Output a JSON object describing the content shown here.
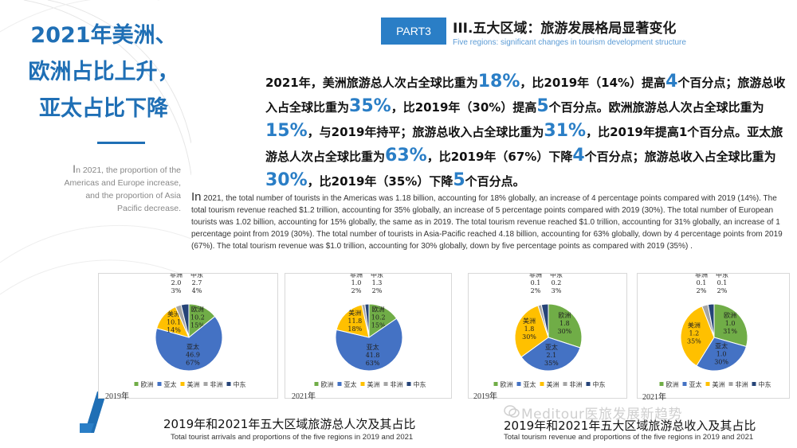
{
  "left": {
    "title_lines": [
      "2021年美洲、",
      "欧洲占比上升，",
      "亚太占比下降"
    ],
    "english_first": "I",
    "english_rest": "n 2021, the proportion of the Americas and Europe increase, and the proportion of Asia Pacific decrease."
  },
  "header": {
    "part_label": "PART3",
    "title_zh": "III.五大区域：旅游发展格局显著变化",
    "title_en": "Five regions: significant changes in tourism development structure"
  },
  "summary_zh": [
    {
      "t": "2021年，美洲旅游总人次占全球比重为"
    },
    {
      "h": "18%"
    },
    {
      "t": "，比2019年（14%）提高"
    },
    {
      "h": "4"
    },
    {
      "t": "个百分点；旅游总收入占全球比重为"
    },
    {
      "h": "35%"
    },
    {
      "t": "，比2019年（30%）提高"
    },
    {
      "h": "5"
    },
    {
      "t": "个百分点。欧洲旅游总人次占全球比重为"
    },
    {
      "h": "15%"
    },
    {
      "t": "，与2019年持平；旅游总收入占全球比重为"
    },
    {
      "h": "31%"
    },
    {
      "t": "，比2019年提高1个百分点。亚太旅游总人次占全球比重为"
    },
    {
      "h": "63%"
    },
    {
      "t": "，比2019年（67%）下降"
    },
    {
      "h": "4"
    },
    {
      "t": "个百分点；旅游总收入占全球比重为"
    },
    {
      "h": "30%"
    },
    {
      "t": "，比2019年（35%）下降"
    },
    {
      "h": "5"
    },
    {
      "t": "个百分点。"
    }
  ],
  "summary_en_first": "In",
  "summary_en_rest": " 2021, the total number of tourists in the Americas was 1.18 billion, accounting for 18% globally, an increase of 4 percentage points compared with 2019 (14%). The total tourism revenue reached $1.2 trillion, accounting for 35% globally, an increase of 5 percentage points compared with 2019 (30%). The total number of European tourists was 1.02 billion, accounting for 15% globally, the same as in 2019. The total tourism revenue reached $1.0 trillion, accounting for 31% globally, an increase of 1 percentage point from 2019 (30%). The total number of tourists in Asia-Pacific reached 4.18 billion, accounting for 63% globally, down by 4 percentage points from 2019 (67%). The total tourism revenue was $1.0 trillion, accounting for 30% globally,  down by five percentage points as compared with 2019 (35%) .",
  "legend_order": [
    "欧洲",
    "亚太",
    "美洲",
    "非洲",
    "中东"
  ],
  "colors": {
    "欧洲": "#70ad47",
    "亚太": "#4472c4",
    "美洲": "#ffc000",
    "非洲": "#a5a5a5",
    "中东": "#264478"
  },
  "chart_data": [
    {
      "type": "pie",
      "title": "2019年",
      "slices": [
        {
          "name": "欧洲",
          "value": 10.2,
          "label": "欧洲, 10.2, 15%"
        },
        {
          "name": "亚太",
          "value": 46.9,
          "label": "亚太, 46.9, 67%"
        },
        {
          "name": "美洲",
          "value": 10.1,
          "label": "美洲, 10.1, 14%"
        },
        {
          "name": "非洲",
          "value": 2.0,
          "label": "非洲, 2.0, 3%"
        },
        {
          "name": "中东",
          "value": 2.7,
          "label": "中东, 2.7, 4%"
        }
      ]
    },
    {
      "type": "pie",
      "title": "2021年",
      "slices": [
        {
          "name": "欧洲",
          "value": 10.2,
          "label": "欧洲, 10.2, 15%"
        },
        {
          "name": "亚太",
          "value": 41.8,
          "label": "亚太, 41.8, 63%"
        },
        {
          "name": "美洲",
          "value": 11.8,
          "label": "美洲, 11.8, 18%"
        },
        {
          "name": "非洲",
          "value": 1.0,
          "label": "非洲, 1.0, 2%"
        },
        {
          "name": "中东",
          "value": 1.3,
          "label": "中东, 1.3, 2%"
        }
      ]
    },
    {
      "type": "pie",
      "title": "2019年",
      "slices": [
        {
          "name": "欧洲",
          "value": 1.8,
          "label": "欧洲, 1.8, 30%"
        },
        {
          "name": "亚太",
          "value": 2.1,
          "label": "亚太, 2.1, 35%"
        },
        {
          "name": "美洲",
          "value": 1.8,
          "label": "美洲, 1.8, 30%"
        },
        {
          "name": "非洲",
          "value": 0.1,
          "label": "非洲, 0.1, 2%"
        },
        {
          "name": "中东",
          "value": 0.2,
          "label": "中东, 0.2, 3%"
        }
      ]
    },
    {
      "type": "pie",
      "title": "2021年",
      "slices": [
        {
          "name": "欧洲",
          "value": 1.0,
          "label": "欧洲, 1.0, 31%"
        },
        {
          "name": "亚太",
          "value": 1.0,
          "label": "亚太, 1.0, 30%"
        },
        {
          "name": "美洲",
          "value": 1.2,
          "label": "美洲, 1.2, 35%"
        },
        {
          "name": "非洲",
          "value": 0.1,
          "label": "非洲, 0.1, 2%"
        },
        {
          "name": "中东",
          "value": 0.1,
          "label": "中东, 0.1, 2%"
        }
      ]
    }
  ],
  "captions": {
    "left_zh": "2019年和2021年五大区域旅游总人次及其占比",
    "left_en": "Total tourist arrivals and proportions of the five regions in 2019 and 2021",
    "right_zh": "2019年和2021年五大区域旅游总收入及其占比",
    "right_en": "Total tourism revenue and proportions of the five regions in 2019 and 2021"
  },
  "watermark": "Meditour医旅发展新趋势"
}
